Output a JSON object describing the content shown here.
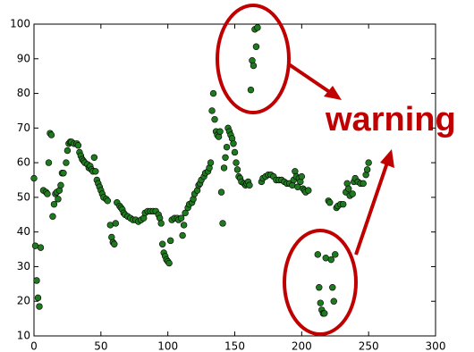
{
  "chart_data": {
    "type": "scatter",
    "annotation": "warning",
    "color": "#1f7a1f",
    "xlim": [
      0,
      300
    ],
    "xticks": [
      0,
      50,
      100,
      150,
      200,
      250,
      300
    ],
    "ylim": [
      10,
      100
    ],
    "yticks": [
      10,
      20,
      30,
      40,
      50,
      60,
      70,
      80,
      90,
      100
    ],
    "x": [
      0,
      1,
      2,
      3,
      4,
      5,
      7,
      9,
      10,
      11,
      12,
      13,
      14,
      15,
      16,
      17,
      18,
      19,
      20,
      21,
      22,
      24,
      25,
      26,
      27,
      28,
      30,
      32,
      33,
      34,
      35,
      36,
      37,
      38,
      40,
      41,
      42,
      43,
      44,
      45,
      46,
      47,
      48,
      49,
      50,
      51,
      52,
      54,
      55,
      57,
      58,
      59,
      60,
      61,
      62,
      64,
      65,
      66,
      67,
      68,
      70,
      72,
      74,
      76,
      78,
      80,
      82,
      83,
      85,
      87,
      89,
      91,
      93,
      94,
      95,
      96,
      97,
      98,
      99,
      100,
      101,
      102,
      103,
      105,
      107,
      108,
      110,
      111,
      112,
      113,
      115,
      116,
      118,
      119,
      120,
      122,
      123,
      124,
      125,
      127,
      128,
      130,
      131,
      132,
      133,
      134,
      135,
      136,
      137,
      138,
      139,
      140,
      141,
      142,
      143,
      144,
      145,
      146,
      147,
      148,
      149,
      150,
      151,
      152,
      153,
      154,
      155,
      157,
      158,
      159,
      160,
      161,
      162,
      163,
      164,
      165,
      166,
      167,
      170,
      171,
      173,
      175,
      177,
      179,
      181,
      183,
      185,
      187,
      189,
      191,
      193,
      194,
      195,
      196,
      197,
      198,
      199,
      200,
      201,
      202,
      203,
      205,
      212,
      213,
      214,
      215,
      216,
      217,
      218,
      220,
      221,
      222,
      223,
      224,
      225,
      226,
      227,
      229,
      231,
      233,
      234,
      235,
      236,
      238,
      239,
      240,
      242,
      244,
      246,
      248,
      249,
      250
    ],
    "y": [
      55.5,
      36,
      26,
      21,
      18.5,
      35.5,
      52,
      51.5,
      51,
      60,
      68.5,
      68,
      44.5,
      48,
      51,
      51.5,
      49.5,
      52,
      53.5,
      57,
      57,
      60,
      63.5,
      65.5,
      66,
      66,
      65.5,
      65.5,
      65,
      63,
      62,
      61,
      60.5,
      60,
      59.5,
      58.5,
      59,
      58,
      57.5,
      61.5,
      57.5,
      55,
      54,
      53,
      52,
      51,
      50,
      49.5,
      49,
      42,
      38.5,
      37,
      36.5,
      42.5,
      48.5,
      47.5,
      47,
      46.5,
      45.5,
      45,
      44.5,
      44,
      43.5,
      43.5,
      43,
      43.5,
      44,
      45.5,
      46,
      46,
      46,
      46,
      45,
      44,
      42.5,
      36.5,
      34,
      33,
      32,
      31.5,
      31,
      37.5,
      43.5,
      44,
      44,
      43.5,
      44,
      39,
      42,
      45.5,
      47,
      48,
      48.5,
      49.5,
      51,
      52,
      53.5,
      54,
      55,
      56,
      57,
      57.5,
      58.5,
      60,
      75,
      80,
      72.5,
      69,
      68,
      67.5,
      69,
      51.5,
      42.5,
      58.5,
      61.5,
      64.5,
      70,
      69,
      68,
      67,
      65.5,
      63,
      60,
      58,
      56,
      55.5,
      54.5,
      54,
      53.5,
      54,
      54.5,
      53.5,
      81,
      89.5,
      88,
      98.5,
      93.5,
      99,
      54.5,
      55.5,
      56,
      56.5,
      56.5,
      56,
      55,
      55,
      55,
      54.5,
      54,
      54,
      53.5,
      55,
      57.5,
      56,
      53,
      55.5,
      54.5,
      56,
      52.5,
      52,
      51.5,
      52,
      33.5,
      24,
      19.5,
      17.5,
      16.5,
      16.5,
      32.5,
      49,
      48.5,
      32,
      24,
      20,
      33.5,
      47,
      47.5,
      48,
      48,
      51.5,
      54,
      52.5,
      50.5,
      51,
      54.5,
      55.5,
      54.5,
      54,
      54,
      56.5,
      58,
      60
    ]
  }
}
